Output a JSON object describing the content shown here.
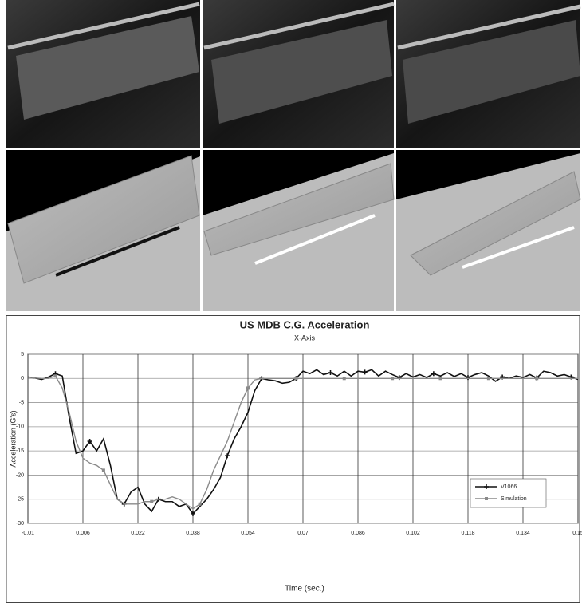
{
  "chart_data": {
    "type": "line",
    "title": "US MDB C.G. Acceleration",
    "subtitle": "X-Axis",
    "x_label": "Time (sec.)",
    "y_label": "Acceleration (G's)",
    "x": [
      -0.01,
      -0.008,
      -0.006,
      -0.004,
      -0.002,
      0.0,
      0.002,
      0.004,
      0.006,
      0.008,
      0.01,
      0.012,
      0.014,
      0.016,
      0.018,
      0.02,
      0.022,
      0.024,
      0.026,
      0.028,
      0.03,
      0.032,
      0.034,
      0.036,
      0.038,
      0.04,
      0.042,
      0.044,
      0.046,
      0.048,
      0.05,
      0.052,
      0.054,
      0.056,
      0.058,
      0.06,
      0.062,
      0.064,
      0.066,
      0.068,
      0.07,
      0.072,
      0.074,
      0.076,
      0.078,
      0.08,
      0.082,
      0.084,
      0.086,
      0.088,
      0.09,
      0.092,
      0.094,
      0.096,
      0.098,
      0.1,
      0.102,
      0.104,
      0.106,
      0.108,
      0.11,
      0.112,
      0.114,
      0.116,
      0.118,
      0.12,
      0.122,
      0.124,
      0.126,
      0.128,
      0.13,
      0.132,
      0.134,
      0.136,
      0.138,
      0.14,
      0.142,
      0.144,
      0.146,
      0.148,
      0.15
    ],
    "series": [
      {
        "name": "V1066",
        "color": "#111111",
        "values": [
          0.3,
          0.1,
          -0.2,
          0.3,
          1.0,
          0.5,
          -8,
          -15.5,
          -15,
          -13,
          -15,
          -12.5,
          -18,
          -25,
          -26,
          -23.5,
          -22.5,
          -26,
          -27.5,
          -25,
          -25.5,
          -25.5,
          -26.5,
          -26,
          -28,
          -26.5,
          -25,
          -23,
          -20.5,
          -16,
          -12.5,
          -10,
          -7,
          -2.5,
          0,
          -0.3,
          -0.5,
          -1.0,
          -0.8,
          0,
          1.5,
          1.0,
          1.8,
          0.8,
          1.2,
          0.5,
          1.5,
          0.5,
          1.5,
          1.3,
          1.8,
          0.5,
          1.5,
          0.8,
          0.2,
          1.0,
          0.3,
          0.8,
          0.2,
          1.0,
          0.5,
          1.2,
          0.4,
          1.0,
          0.2,
          0.8,
          1.2,
          0.5,
          -0.6,
          0.3,
          0.0,
          0.5,
          0.2,
          0.8,
          0.1,
          1.5,
          1.2,
          0.5,
          0.8,
          0.3,
          -0.2
        ]
      },
      {
        "name": "Simulation",
        "color": "#8a8a8a",
        "values": [
          0.3,
          0.1,
          0,
          0,
          0.5,
          -2,
          -7,
          -13,
          -16.5,
          -17.5,
          -18,
          -19,
          -22,
          -25,
          -26,
          -26,
          -26,
          -25.5,
          -25.5,
          -25,
          -25,
          -24.5,
          -25,
          -26,
          -27,
          -26,
          -23,
          -19,
          -16,
          -13,
          -9,
          -5,
          -2,
          -0.3,
          0,
          0,
          0,
          0,
          0,
          0,
          0,
          0,
          0,
          0,
          0,
          0,
          0,
          0,
          0,
          0,
          0,
          0,
          0,
          0,
          0,
          0,
          0,
          0,
          0,
          0,
          0,
          0,
          0,
          0,
          0,
          0,
          0,
          0,
          0,
          0,
          0,
          0,
          0,
          0,
          0,
          0,
          0,
          0,
          0,
          0,
          0
        ]
      }
    ],
    "xlim": [
      -0.01,
      0.15
    ],
    "xticks": [
      -0.01,
      0.006,
      0.022,
      0.038,
      0.054,
      0.07,
      0.086,
      0.102,
      0.118,
      0.134,
      0.15
    ],
    "ylim": [
      -30,
      5
    ],
    "yticks": [
      5,
      0,
      -5,
      -10,
      -15,
      -20,
      -25,
      -30
    ],
    "grid": true,
    "legend": "lower-right"
  }
}
